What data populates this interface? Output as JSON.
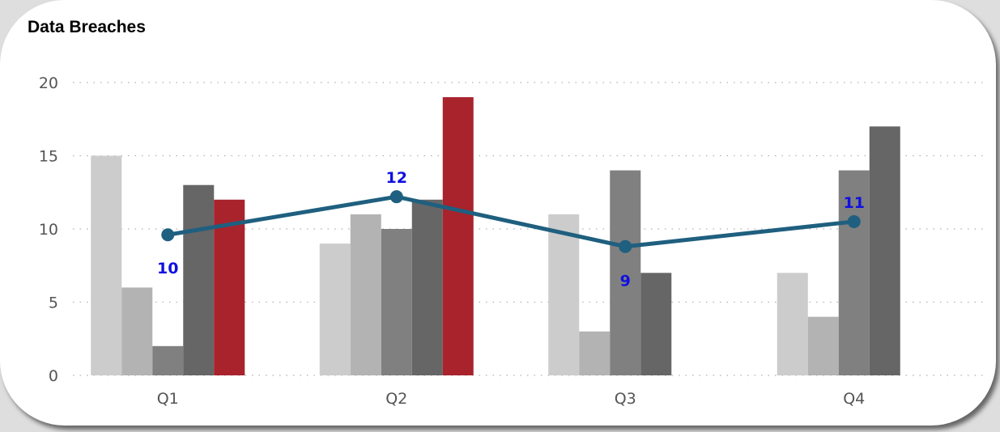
{
  "chart_data": {
    "type": "bar",
    "title": "Data Breaches",
    "categories": [
      "Q1",
      "Q2",
      "Q3",
      "Q4"
    ],
    "ylim": [
      0,
      20
    ],
    "yticks": [
      0,
      5,
      10,
      15,
      20
    ],
    "grid": true,
    "series": [
      {
        "values": [
          15,
          9,
          11,
          7
        ],
        "color": "#cccccc"
      },
      {
        "values": [
          6,
          11,
          3,
          4
        ],
        "color": "#b3b3b3"
      },
      {
        "values": [
          2,
          10,
          14,
          14
        ],
        "color": "#808080"
      },
      {
        "values": [
          13,
          12,
          7,
          17
        ],
        "color": "#666666"
      },
      {
        "values": [
          12,
          19,
          null,
          null
        ],
        "color": "#a8232b"
      }
    ],
    "line_series": {
      "type": "line",
      "values": [
        9.6,
        12.2,
        8.8,
        10.5
      ],
      "labels": [
        "10",
        "12",
        "9",
        "11"
      ],
      "color": "#1f5f7f"
    }
  }
}
